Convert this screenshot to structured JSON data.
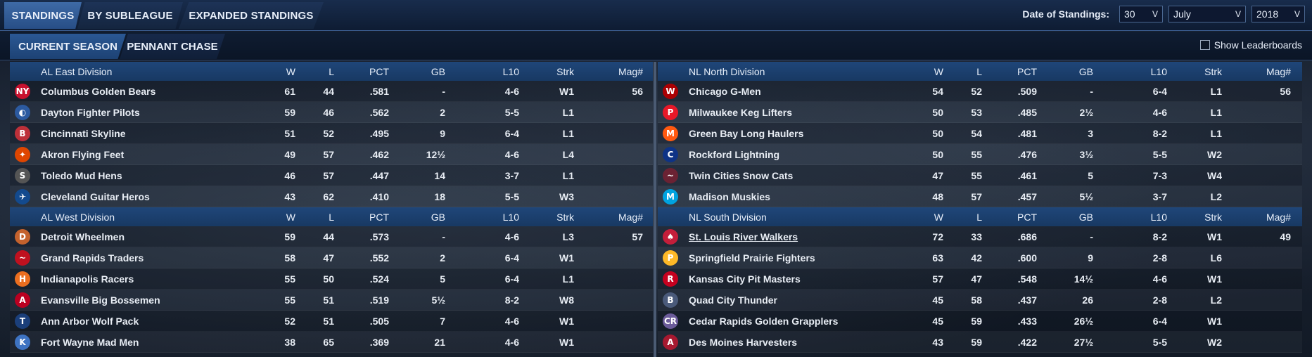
{
  "tabs": [
    {
      "label": "STANDINGS",
      "active": true
    },
    {
      "label": "BY SUBLEAGUE",
      "active": false
    },
    {
      "label": "EXPANDED STANDINGS",
      "active": false
    }
  ],
  "date": {
    "label": "Date of Standings:",
    "day": "30",
    "month": "July",
    "year": "2018"
  },
  "subtabs": [
    {
      "label": "CURRENT SEASON",
      "active": true
    },
    {
      "label": "PENNANT CHASE",
      "active": false
    }
  ],
  "leaderboards_label": "Show Leaderboards",
  "columns": {
    "w": "W",
    "l": "L",
    "pct": "PCT",
    "gb": "GB",
    "l10": "L10",
    "strk": "Strk",
    "mag": "Mag#"
  },
  "divisions": {
    "al_east": {
      "name": "AL East Division",
      "teams": [
        {
          "logo": "yankees-style-logo",
          "glyph": "NY",
          "color": "#c8102e",
          "name": "Columbus Golden Bears",
          "w": "61",
          "l": "44",
          "pct": ".581",
          "gb": "-",
          "l10": "4-6",
          "strk": "W1",
          "mag": "56"
        },
        {
          "logo": "rays-style-logo",
          "glyph": "◐",
          "color": "#2c5aa0",
          "name": "Dayton Fighter Pilots",
          "w": "59",
          "l": "46",
          "pct": ".562",
          "gb": "2",
          "l10": "5-5",
          "strk": "L1",
          "mag": ""
        },
        {
          "logo": "redsox-style-logo",
          "glyph": "B",
          "color": "#bd3039",
          "name": "Cincinnati Skyline",
          "w": "51",
          "l": "52",
          "pct": ".495",
          "gb": "9",
          "l10": "6-4",
          "strk": "L1",
          "mag": ""
        },
        {
          "logo": "orioles-style-logo",
          "glyph": "✦",
          "color": "#df4601",
          "name": "Akron  Flying Feet",
          "w": "49",
          "l": "57",
          "pct": ".462",
          "gb": "12½",
          "l10": "4-6",
          "strk": "L4",
          "mag": ""
        },
        {
          "logo": "whitesox-style-logo",
          "glyph": "S",
          "color": "#555555",
          "name": "Toledo  Mud Hens",
          "w": "46",
          "l": "57",
          "pct": ".447",
          "gb": "14",
          "l10": "3-7",
          "strk": "L1",
          "mag": ""
        },
        {
          "logo": "bluejays-style-logo",
          "glyph": "✈",
          "color": "#134a8e",
          "name": "Cleveland Guitar Heros",
          "w": "43",
          "l": "62",
          "pct": ".410",
          "gb": "18",
          "l10": "5-5",
          "strk": "W3",
          "mag": ""
        }
      ]
    },
    "al_west": {
      "name": "AL West Division",
      "teams": [
        {
          "logo": "tigers-style-logo",
          "glyph": "D",
          "color": "#c4622d",
          "name": "Detroit Wheelmen",
          "w": "59",
          "l": "44",
          "pct": ".573",
          "gb": "-",
          "l10": "4-6",
          "strk": "L3",
          "mag": "57"
        },
        {
          "logo": "rangers-style-logo",
          "glyph": "~",
          "color": "#c0111f",
          "name": "Grand Rapids Traders",
          "w": "58",
          "l": "47",
          "pct": ".552",
          "gb": "2",
          "l10": "6-4",
          "strk": "W1",
          "mag": ""
        },
        {
          "logo": "astros-style-logo",
          "glyph": "H",
          "color": "#eb6e1f",
          "name": "Indianapolis Racers",
          "w": "55",
          "l": "50",
          "pct": ".524",
          "gb": "5",
          "l10": "6-4",
          "strk": "L1",
          "mag": ""
        },
        {
          "logo": "angels-style-logo",
          "glyph": "A",
          "color": "#ba0021",
          "name": "Evansville Big Bossemen",
          "w": "55",
          "l": "51",
          "pct": ".519",
          "gb": "5½",
          "l10": "8-2",
          "strk": "W8",
          "mag": ""
        },
        {
          "logo": "twins-style-logo",
          "glyph": "T",
          "color": "#1b3f7a",
          "name": "Ann Arbor Wolf Pack",
          "w": "52",
          "l": "51",
          "pct": ".505",
          "gb": "7",
          "l10": "4-6",
          "strk": "W1",
          "mag": ""
        },
        {
          "logo": "royals-style-logo",
          "glyph": "K",
          "color": "#3e73c2",
          "name": "Fort Wayne Mad Men",
          "w": "38",
          "l": "65",
          "pct": ".369",
          "gb": "21",
          "l10": "4-6",
          "strk": "W1",
          "mag": ""
        }
      ]
    },
    "nl_north": {
      "name": "NL North Division",
      "teams": [
        {
          "logo": "nationals-style-logo",
          "glyph": "W",
          "color": "#ab0003",
          "name": "Chicago G-Men",
          "w": "54",
          "l": "52",
          "pct": ".509",
          "gb": "-",
          "l10": "6-4",
          "strk": "L1",
          "mag": "56",
          "link": false
        },
        {
          "logo": "phillies-style-logo",
          "glyph": "P",
          "color": "#e81828",
          "name": "Milwaukee Keg Lifters",
          "w": "50",
          "l": "53",
          "pct": ".485",
          "gb": "2½",
          "l10": "4-6",
          "strk": "L1",
          "mag": "",
          "link": false
        },
        {
          "logo": "mets-style-logo",
          "glyph": "M",
          "color": "#ff5910",
          "name": "Green Bay  Long Haulers",
          "w": "50",
          "l": "54",
          "pct": ".481",
          "gb": "3",
          "l10": "8-2",
          "strk": "L1",
          "mag": "",
          "link": false
        },
        {
          "logo": "cubs-style-logo",
          "glyph": "C",
          "color": "#0e3386",
          "name": "Rockford Lightning",
          "w": "50",
          "l": "55",
          "pct": ".476",
          "gb": "3½",
          "l10": "5-5",
          "strk": "W2",
          "mag": "",
          "link": false
        },
        {
          "logo": "braves-style-logo",
          "glyph": "~",
          "color": "#6b2233",
          "name": "Twin Cities Snow Cats",
          "w": "47",
          "l": "55",
          "pct": ".461",
          "gb": "5",
          "l10": "7-3",
          "strk": "W4",
          "mag": "",
          "link": false
        },
        {
          "logo": "marlins-style-logo",
          "glyph": "M",
          "color": "#00a3e0",
          "name": "Madison Muskies",
          "w": "48",
          "l": "57",
          "pct": ".457",
          "gb": "5½",
          "l10": "3-7",
          "strk": "L2",
          "mag": "",
          "link": false
        }
      ]
    },
    "nl_south": {
      "name": "NL South Division",
      "teams": [
        {
          "logo": "cardinals-style-logo",
          "glyph": "♠",
          "color": "#c41e3a",
          "name": "St. Louis River Walkers",
          "w": "72",
          "l": "33",
          "pct": ".686",
          "gb": "-",
          "l10": "8-2",
          "strk": "W1",
          "mag": "49",
          "link": true
        },
        {
          "logo": "pirates-style-logo",
          "glyph": "P",
          "color": "#fdb827",
          "name": "Springfield Prairie Fighters",
          "w": "63",
          "l": "42",
          "pct": ".600",
          "gb": "9",
          "l10": "2-8",
          "strk": "L6",
          "mag": "",
          "link": false
        },
        {
          "logo": "reds-style-logo",
          "glyph": "R",
          "color": "#c6011f",
          "name": "Kansas City Pit Masters",
          "w": "57",
          "l": "47",
          "pct": ".548",
          "gb": "14½",
          "l10": "4-6",
          "strk": "W1",
          "mag": "",
          "link": false
        },
        {
          "logo": "brewers-style-logo",
          "glyph": "B",
          "color": "#4a5a7a",
          "name": "Quad City Thunder",
          "w": "45",
          "l": "58",
          "pct": ".437",
          "gb": "26",
          "l10": "2-8",
          "strk": "L2",
          "mag": "",
          "link": false
        },
        {
          "logo": "rockies-style-logo",
          "glyph": "CR",
          "color": "#6b5b9a",
          "name": "Cedar Rapids Golden Grapplers",
          "w": "45",
          "l": "59",
          "pct": ".433",
          "gb": "26½",
          "l10": "6-4",
          "strk": "W1",
          "mag": "",
          "link": false
        },
        {
          "logo": "diamondbacks-style-logo",
          "glyph": "A",
          "color": "#a71930",
          "name": "Des Moines   Harvesters",
          "w": "43",
          "l": "59",
          "pct": ".422",
          "gb": "27½",
          "l10": "5-5",
          "strk": "W2",
          "mag": "",
          "link": false
        }
      ]
    }
  }
}
